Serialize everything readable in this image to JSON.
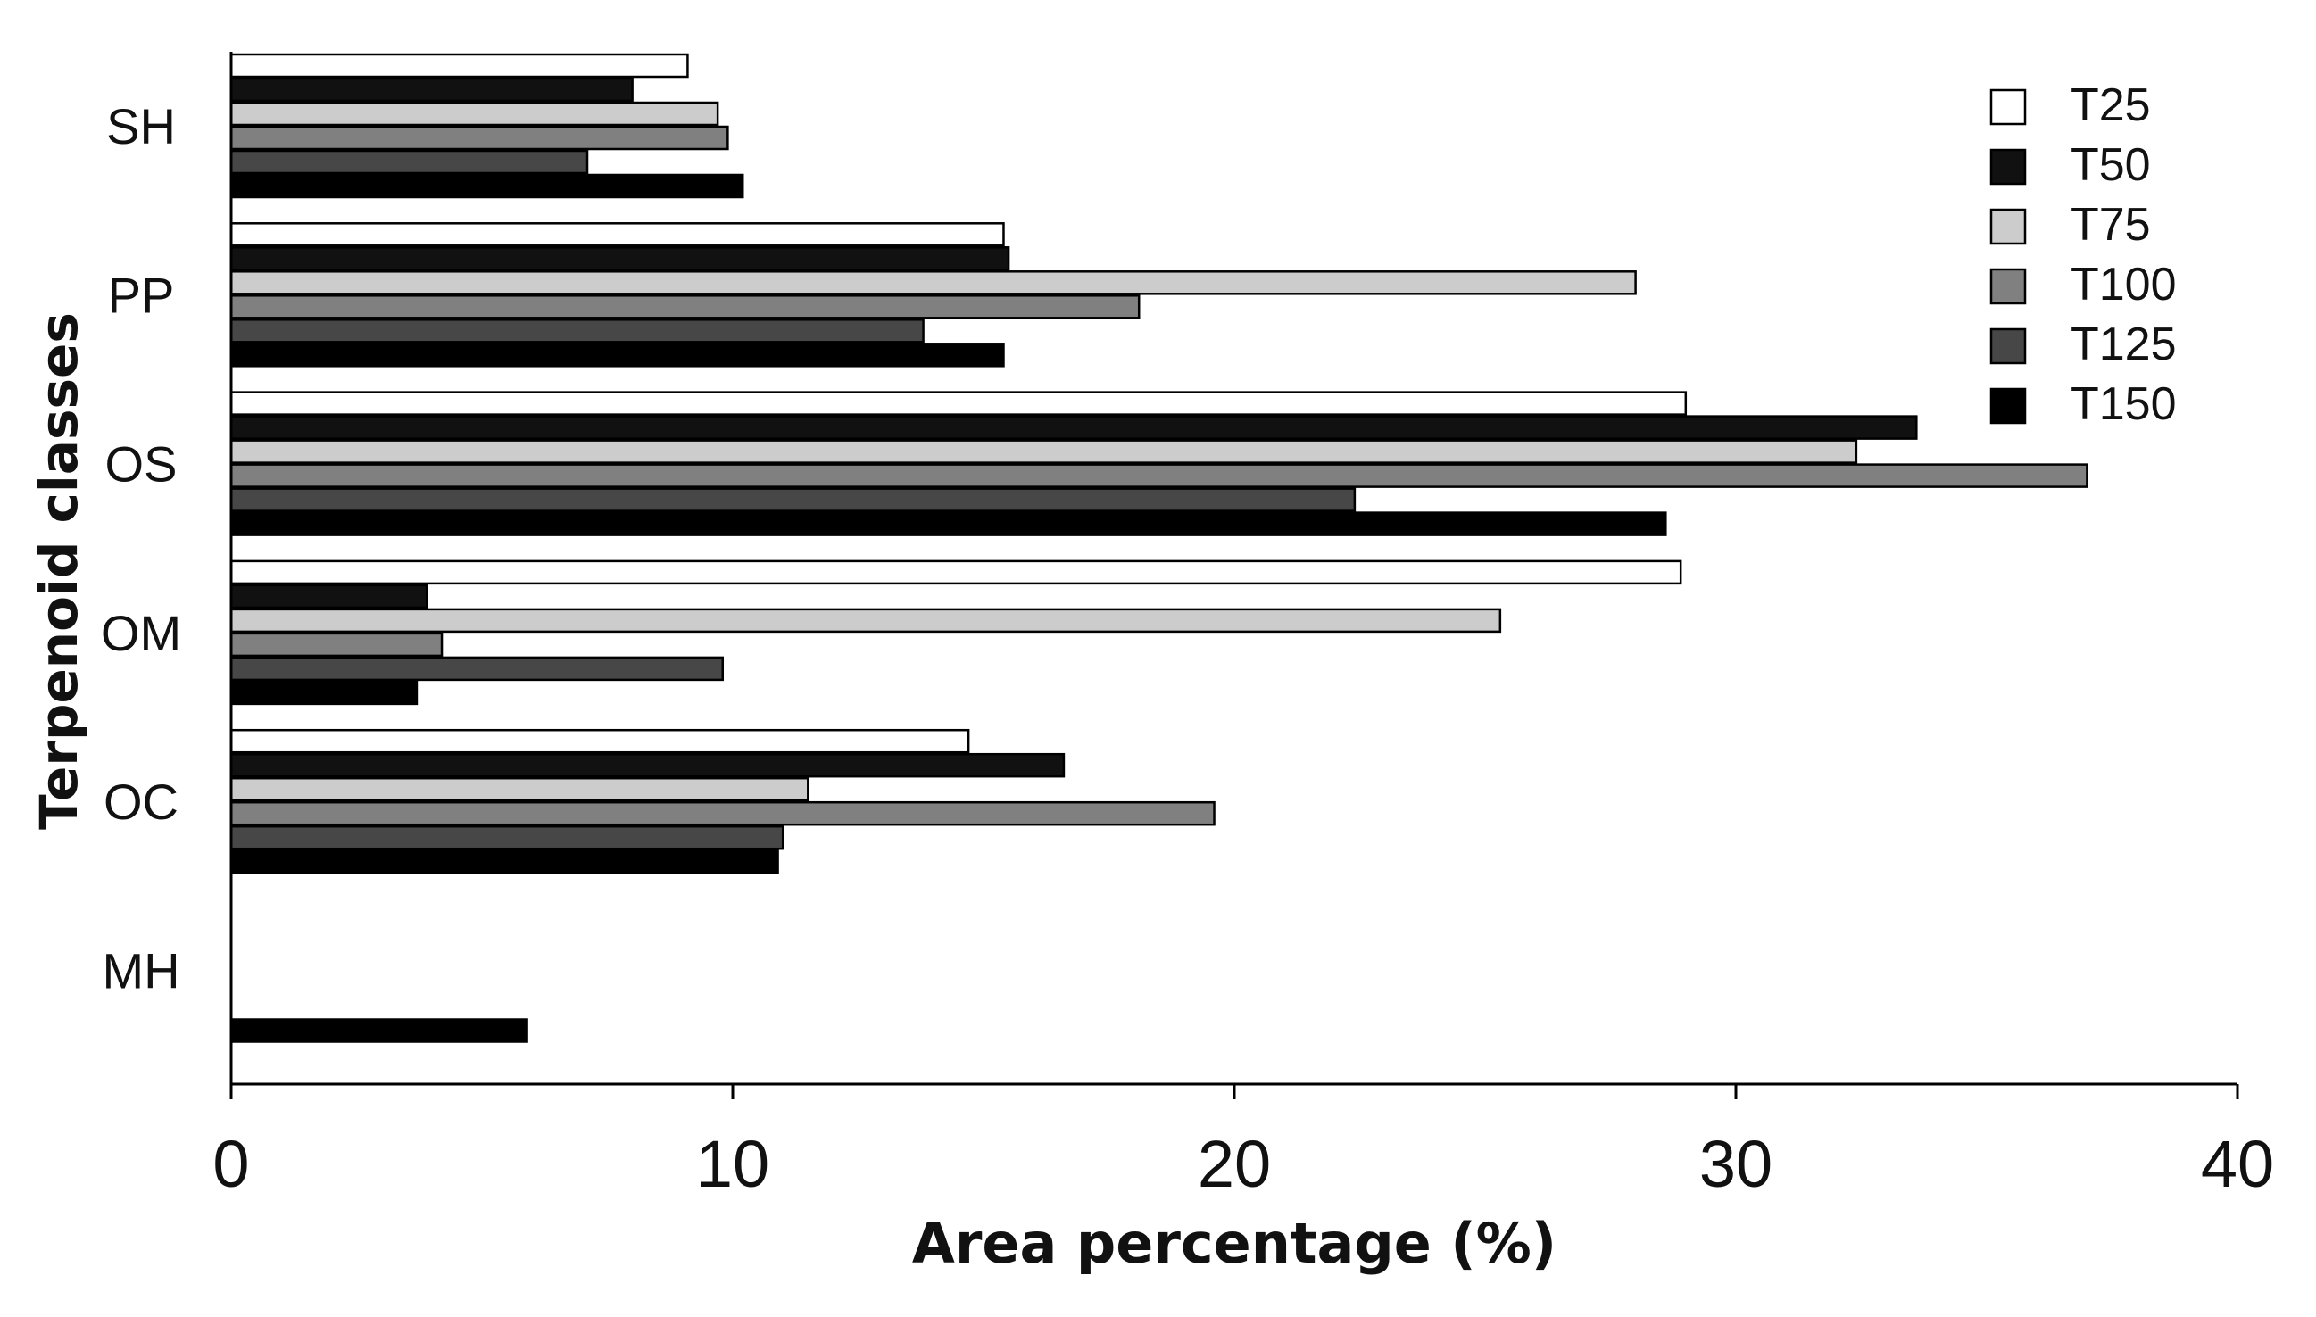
{
  "chart_data": {
    "type": "bar",
    "orientation": "horizontal",
    "categories": [
      "SH",
      "PP",
      "OS",
      "OM",
      "OC",
      "MH"
    ],
    "series": [
      {
        "name": "T25",
        "color": "#ffffff",
        "values": [
          9.1,
          15.4,
          29.0,
          28.9,
          14.7,
          0
        ]
      },
      {
        "name": "T50",
        "color": "#111111",
        "values": [
          8.0,
          15.5,
          33.6,
          3.9,
          16.6,
          0
        ]
      },
      {
        "name": "T75",
        "color": "#cccccc",
        "values": [
          9.7,
          28.0,
          32.4,
          25.3,
          11.5,
          0
        ]
      },
      {
        "name": "T100",
        "color": "#808080",
        "values": [
          9.9,
          18.1,
          37.0,
          4.2,
          19.6,
          0
        ]
      },
      {
        "name": "T125",
        "color": "#474747",
        "values": [
          7.1,
          13.8,
          22.4,
          9.8,
          11.0,
          0
        ]
      },
      {
        "name": "T150",
        "color": "#000000",
        "values": [
          10.2,
          15.4,
          28.6,
          3.7,
          10.9,
          5.9
        ]
      }
    ],
    "xlabel": "Area percentage (%)",
    "ylabel": "Terpenoid classes",
    "xlim": [
      0,
      40
    ],
    "xticks": [
      0,
      10,
      20,
      30,
      40
    ],
    "grid": false,
    "legend_position": "top-right"
  }
}
